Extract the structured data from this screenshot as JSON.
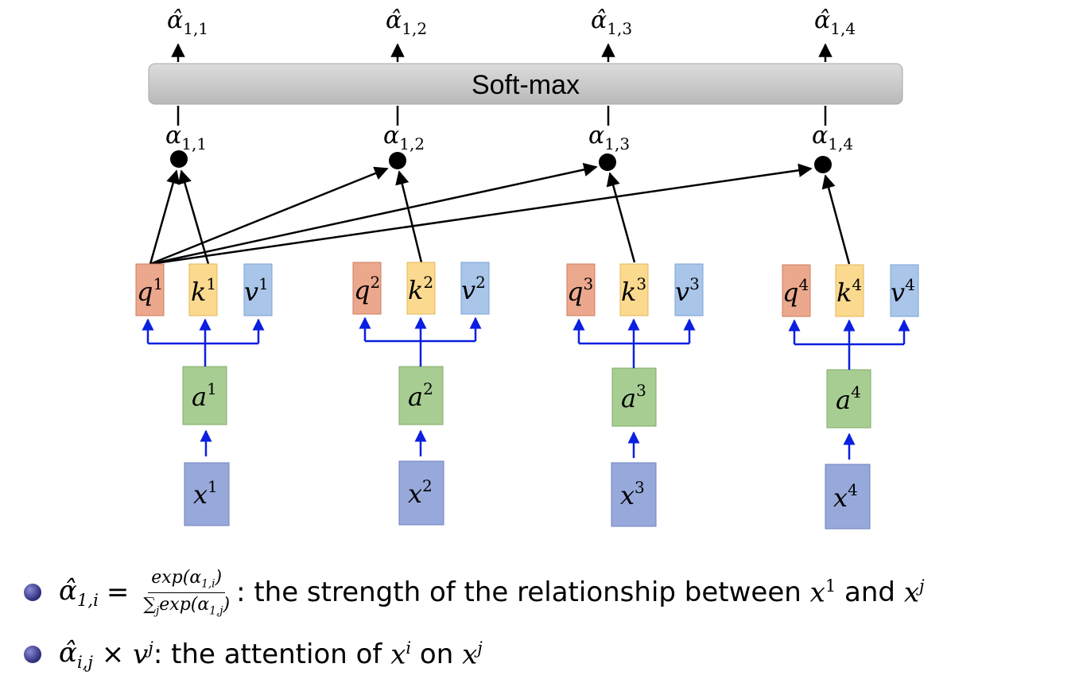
{
  "softmax": {
    "label": "Soft-max"
  },
  "columns": [
    {
      "alpha_hat": "α̂",
      "alpha_hat_sub": "1,1",
      "alpha": "α",
      "alpha_sub": "1,1",
      "q": "q",
      "k": "k",
      "v": "v",
      "sup": "1",
      "a": "a",
      "x": "x"
    },
    {
      "alpha_hat": "α̂",
      "alpha_hat_sub": "1,2",
      "alpha": "α",
      "alpha_sub": "1,2",
      "q": "q",
      "k": "k",
      "v": "v",
      "sup": "2",
      "a": "a",
      "x": "x"
    },
    {
      "alpha_hat": "α̂",
      "alpha_hat_sub": "1,3",
      "alpha": "α",
      "alpha_sub": "1,3",
      "q": "q",
      "k": "k",
      "v": "v",
      "sup": "3",
      "a": "a",
      "x": "x"
    },
    {
      "alpha_hat": "α̂",
      "alpha_hat_sub": "1,4",
      "alpha": "α",
      "alpha_sub": "1,4",
      "q": "q",
      "k": "k",
      "v": "v",
      "sup": "4",
      "a": "a",
      "x": "x"
    }
  ],
  "colors": {
    "q_fill": "#eba88d",
    "q_stroke": "#d07c5e",
    "k_fill": "#fbd98f",
    "k_stroke": "#e3b85e",
    "v_fill": "#a9c6ea",
    "v_stroke": "#7aa2d4",
    "a_fill": "#a8cd92",
    "a_stroke": "#7fac68",
    "x_fill": "#97a8da",
    "x_stroke": "#6f82c0",
    "blue_arrow": "#0a1fe0",
    "softmax_fill": "#c8c8c8"
  },
  "bullets": [
    {
      "hat": "α̂",
      "hat_sub": "1,i",
      "eq": "=",
      "num": "exp(α",
      "num_sub": "1,i",
      "num_close": ")",
      "den_sum": "∑",
      "den_sum_sub": "j",
      "den": "exp(α",
      "den_sub": "1,j",
      "den_close": ")",
      "text_a": ": the strength of the relationship between ",
      "x1": "x",
      "x1_sup": "1",
      "and": " and ",
      "xj": "x",
      "xj_sup": "j"
    },
    {
      "hat": "α̂",
      "hat_sub": "i,j",
      "times": " × ",
      "v": "v",
      "v_sup": "j",
      "text_a": ": the attention of ",
      "xi": "x",
      "xi_sup": "i",
      "on": " on ",
      "xj": "x",
      "xj_sup": "j"
    }
  ]
}
